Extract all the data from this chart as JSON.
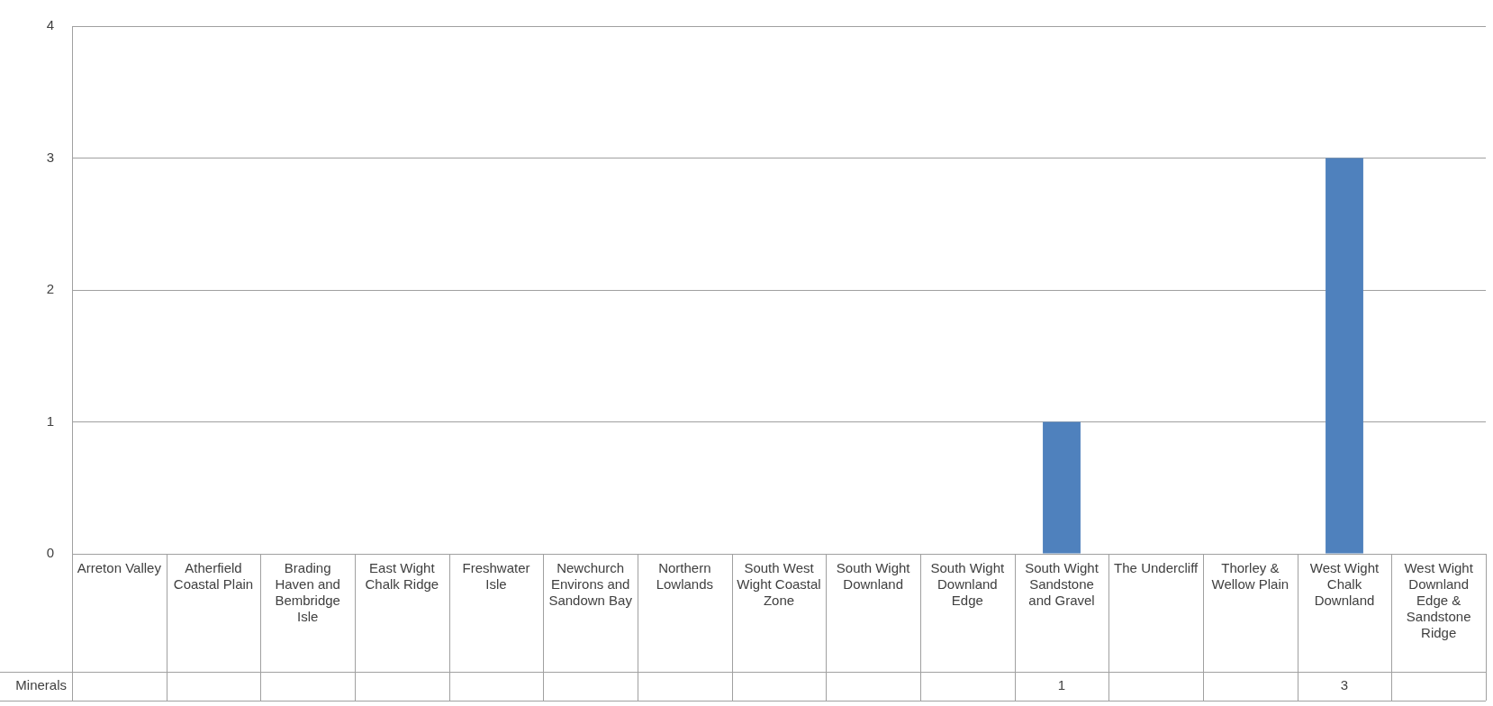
{
  "chart_data": {
    "type": "bar",
    "categories": [
      "Arreton Valley",
      "Atherfield Coastal Plain",
      "Brading Haven and Bembridge Isle",
      "East Wight Chalk Ridge",
      "Freshwater Isle",
      "Newchurch Environs and Sandown Bay",
      "Northern Lowlands",
      "South West Wight Coastal Zone",
      "South Wight Downland",
      "South Wight Downland Edge",
      "South Wight Sandstone and Gravel",
      "The Undercliff",
      "Thorley & Wellow Plain",
      "West Wight Chalk Downland",
      "West Wight Downland Edge & Sandstone Ridge"
    ],
    "series": [
      {
        "name": "Minerals",
        "color": "#4f81bd",
        "values": [
          null,
          null,
          null,
          null,
          null,
          null,
          null,
          null,
          null,
          null,
          1,
          null,
          null,
          3,
          null
        ]
      }
    ],
    "ylim": [
      0,
      4
    ],
    "yticks": [
      0,
      1,
      2,
      3,
      4
    ],
    "grid": "y",
    "legend": false,
    "data_labels": true
  }
}
